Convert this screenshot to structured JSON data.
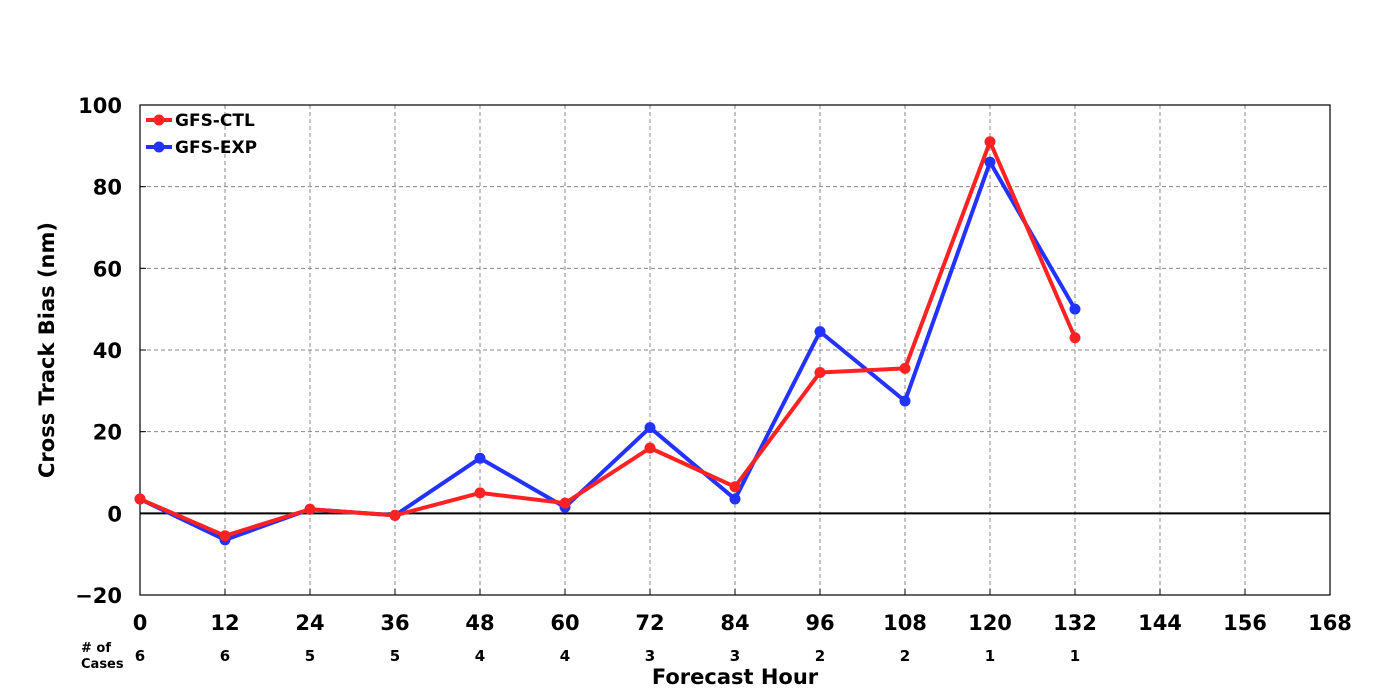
{
  "chart_data": {
    "type": "line",
    "xlabel": "Forecast Hour",
    "ylabel": "Cross Track Bias (nm)",
    "xlim": [
      0,
      168
    ],
    "ylim": [
      -20,
      100
    ],
    "x_ticks": [
      "0",
      "12",
      "24",
      "36",
      "48",
      "60",
      "72",
      "84",
      "96",
      "108",
      "120",
      "132",
      "144",
      "156",
      "168"
    ],
    "y_ticks": [
      "−20",
      "0",
      "20",
      "40",
      "60",
      "80",
      "100"
    ],
    "grid": true,
    "legend_position": "top-left",
    "cases_label": [
      "# of",
      "Cases"
    ],
    "cases": [
      "6",
      "6",
      "5",
      "5",
      "4",
      "4",
      "3",
      "3",
      "2",
      "2",
      "1",
      "1"
    ],
    "x": [
      0,
      12,
      24,
      36,
      48,
      60,
      72,
      84,
      96,
      108,
      120,
      132
    ],
    "series": [
      {
        "name": "GFS-EXP",
        "color": "#2233ff",
        "values": [
          3.5,
          -6.5,
          1.0,
          -0.5,
          13.5,
          1.5,
          21.0,
          3.5,
          44.5,
          27.5,
          86.0,
          50.0
        ]
      },
      {
        "name": "GFS-CTL",
        "color": "#ff2222",
        "values": [
          3.5,
          -5.5,
          1.0,
          -0.5,
          5.0,
          2.5,
          16.0,
          6.5,
          34.5,
          35.5,
          91.0,
          43.0
        ]
      }
    ]
  }
}
